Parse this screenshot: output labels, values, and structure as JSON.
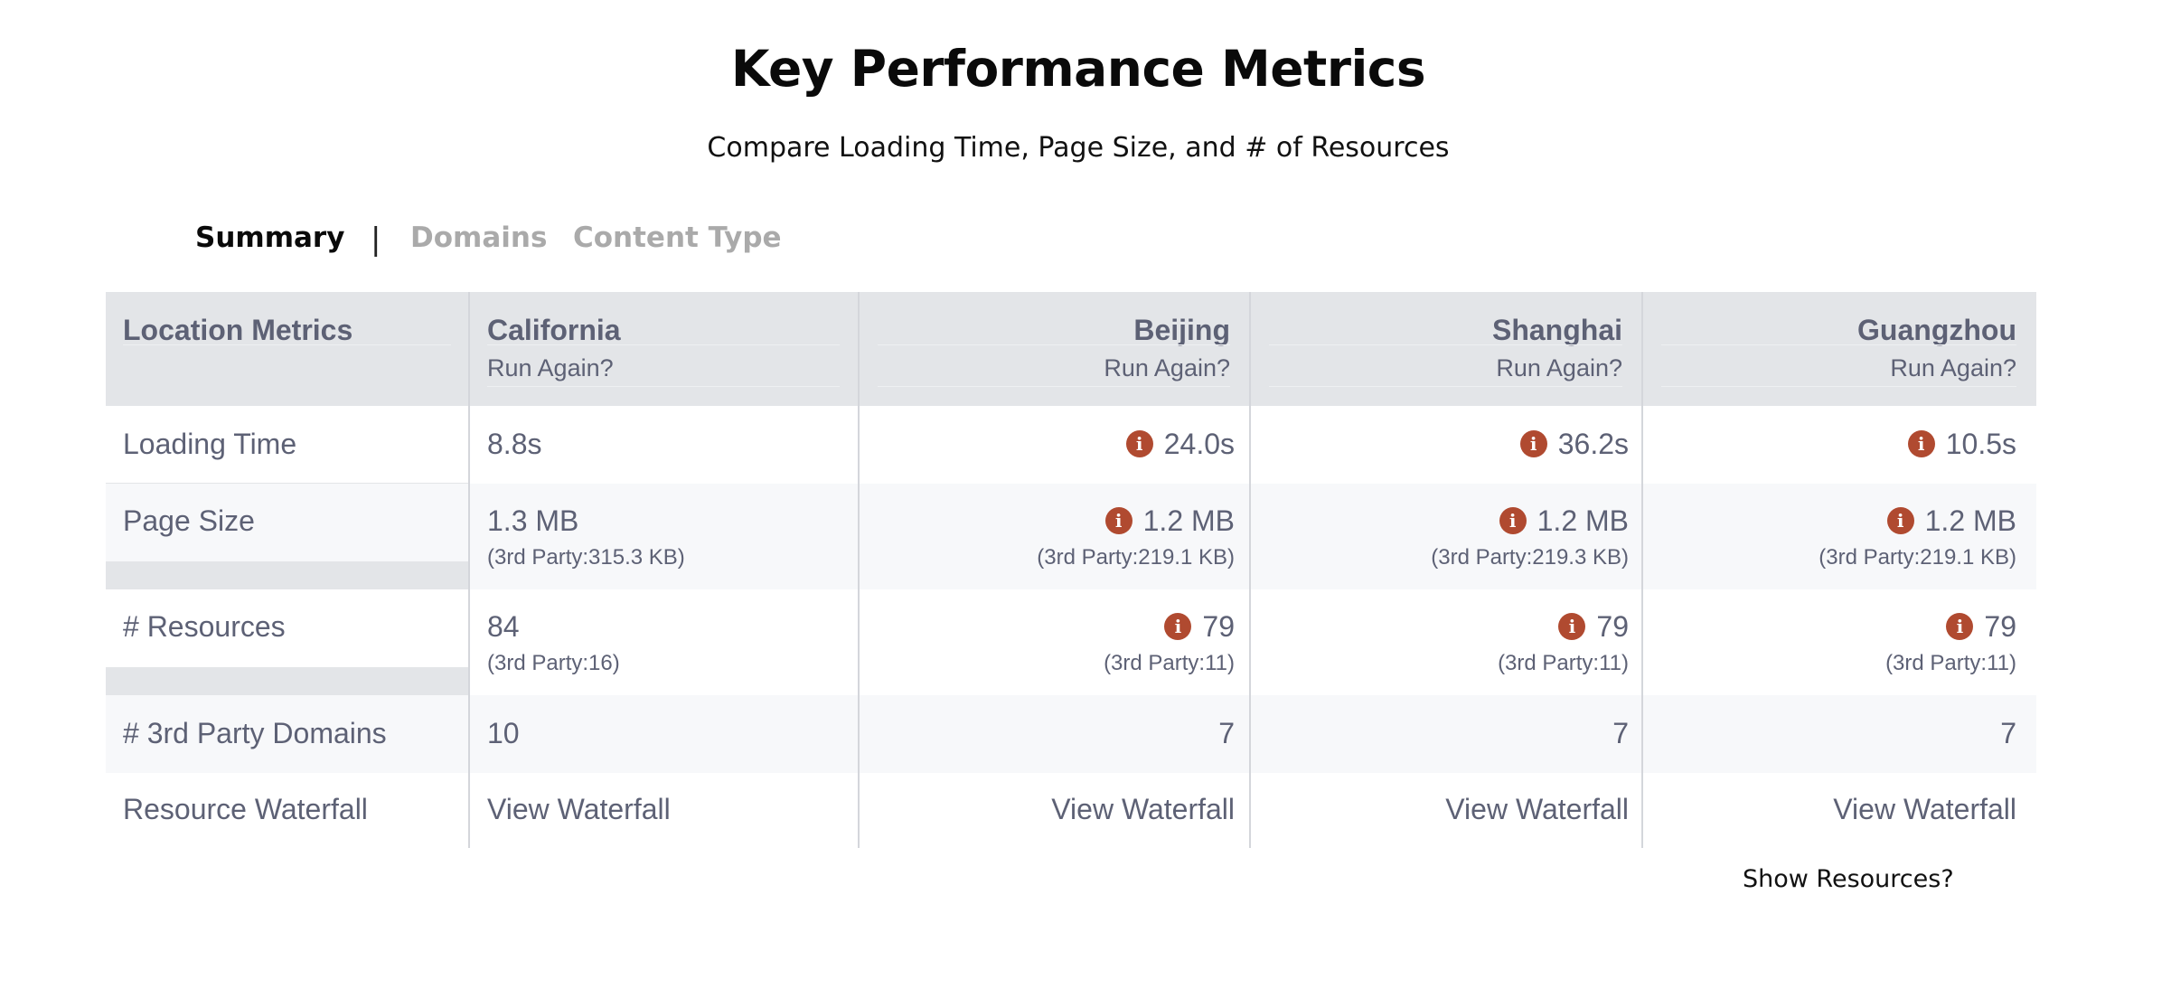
{
  "header": {
    "title": "Key Performance Metrics",
    "subtitle": "Compare Loading Time, Page Size, and # of Resources"
  },
  "tabs": [
    {
      "label": "Summary",
      "active": true
    },
    {
      "label": "Domains",
      "active": false
    },
    {
      "label": "Content Type",
      "active": false
    }
  ],
  "tab_separator": "|",
  "table": {
    "corner_label": "Location Metrics",
    "run_again_label": "Run Again?",
    "locations": [
      "California",
      "Beijing",
      "Shanghai",
      "Guangzhou"
    ],
    "rows": [
      {
        "label": "Loading Time",
        "values": [
          "8.8s",
          "24.0s",
          "36.2s",
          "10.5s"
        ]
      },
      {
        "label": "Page Size",
        "values": [
          "1.3 MB",
          "1.2 MB",
          "1.2 MB",
          "1.2 MB"
        ],
        "subs": [
          "(3rd Party:315.3 KB)",
          "(3rd Party:219.1 KB)",
          "(3rd Party:219.3 KB)",
          "(3rd Party:219.1 KB)"
        ]
      },
      {
        "label": "# Resources",
        "values": [
          "84",
          "79",
          "79",
          "79"
        ],
        "subs": [
          "(3rd Party:16)",
          "(3rd Party:11)",
          "(3rd Party:11)",
          "(3rd Party:11)"
        ]
      },
      {
        "label": "# 3rd Party Domains",
        "values": [
          "10",
          "7",
          "7",
          "7"
        ]
      },
      {
        "label": "Resource Waterfall",
        "values": [
          "View Waterfall",
          "View Waterfall",
          "View Waterfall",
          "View Waterfall"
        ]
      }
    ]
  },
  "info_icon_glyph": "i",
  "colors": {
    "header_bg": "#e3e5e8",
    "alt_row_bg": "#f7f8fa",
    "text": "#5d6175",
    "warning_icon": "#b04a30"
  },
  "show_resources_label": "Show Resources?"
}
